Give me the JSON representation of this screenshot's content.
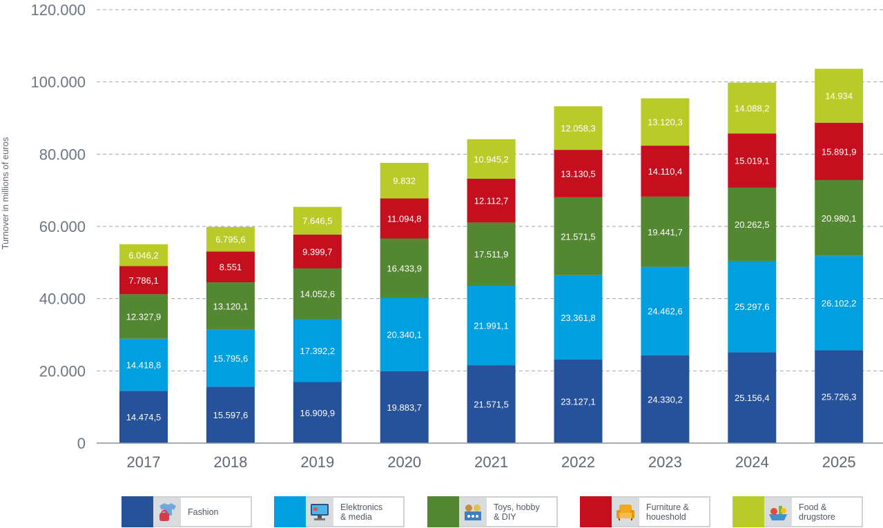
{
  "chart_data": {
    "type": "bar",
    "stacked": true,
    "categories": [
      "2017",
      "2018",
      "2019",
      "2020",
      "2021",
      "2022",
      "2023",
      "2024",
      "2025"
    ],
    "ylabel": "Turnover in millions of euros",
    "ylim": [
      0,
      120000
    ],
    "yticks": [
      0,
      20000,
      40000,
      60000,
      80000,
      100000,
      120000
    ],
    "ytick_labels": [
      "0",
      "20.000",
      "40.000",
      "60.000",
      "80.000",
      "100.000",
      "120.000"
    ],
    "grid": true,
    "legend_position": "bottom",
    "series": [
      {
        "name": "Fashion",
        "color": "#26519b",
        "icon": "fashion-icon",
        "values": [
          14474.5,
          15597.6,
          16909.9,
          19883.7,
          21571.5,
          23127.1,
          24330.2,
          25156.4,
          25726.3
        ],
        "labels": [
          "14.474,5",
          "15.597,6",
          "16.909,9",
          "19.883,7",
          "21.571,5",
          "23.127,1",
          "24.330,2",
          "25.156,4",
          "25.726,3"
        ]
      },
      {
        "name": "Elektronics & media",
        "color": "#009fdf",
        "icon": "electronics-icon",
        "values": [
          14418.8,
          15795.6,
          17392.2,
          20340.1,
          21991.1,
          23361.8,
          24462.6,
          25297.6,
          26102.2
        ],
        "labels": [
          "14.418,8",
          "15.795,6",
          "17.392,2",
          "20.340,1",
          "21.991,1",
          "23.361,8",
          "24.462,6",
          "25.297,6",
          "26.102,2"
        ]
      },
      {
        "name": "Toys, hobby & DIY",
        "color": "#548732",
        "icon": "toys-icon",
        "values": [
          12327.9,
          13120.1,
          14052.6,
          16433.9,
          17511.9,
          21571.5,
          19441.7,
          20262.5,
          20980.1
        ],
        "labels": [
          "12.327,9",
          "13.120,1",
          "14.052,6",
          "16.433,9",
          "17.511,9",
          "21.571,5",
          "19.441,7",
          "20.262,5",
          "20.980,1"
        ]
      },
      {
        "name": "Furniture & houeshold",
        "color": "#c50f1f",
        "icon": "furniture-icon",
        "values": [
          7786.1,
          8551,
          9399.7,
          11094.8,
          12112.7,
          13130.5,
          14110.4,
          15019.1,
          15891.9
        ],
        "labels": [
          "7.786,1",
          "8.551",
          "9.399,7",
          "11.094,8",
          "12.112,7",
          "13.130,5",
          "14.110,4",
          "15.019,1",
          "15.891,9"
        ]
      },
      {
        "name": "Food & drugstore",
        "color": "#b9cb29",
        "icon": "food-icon",
        "values": [
          6046.2,
          6795.6,
          7646.5,
          9832,
          10945.2,
          12058.3,
          13120.3,
          14088.2,
          14934
        ],
        "labels": [
          "6.046,2",
          "6.795,6",
          "7.646,5",
          "9.832",
          "10.945,2",
          "12.058,3",
          "13.120,3",
          "14.088,2",
          "14.934"
        ]
      }
    ]
  },
  "legend": [
    {
      "label": "Fashion",
      "text": "Fashion"
    },
    {
      "label": "Elektronics & media",
      "text": "Elektronics\n& media"
    },
    {
      "label": "Toys, hobby & DIY",
      "text": "Toys, hobby\n& DIY"
    },
    {
      "label": "Furniture & houeshold",
      "text": "Furniture &\nhoueshold"
    },
    {
      "label": "Food & drugstore",
      "text": "Food &\ndrugstore"
    }
  ]
}
